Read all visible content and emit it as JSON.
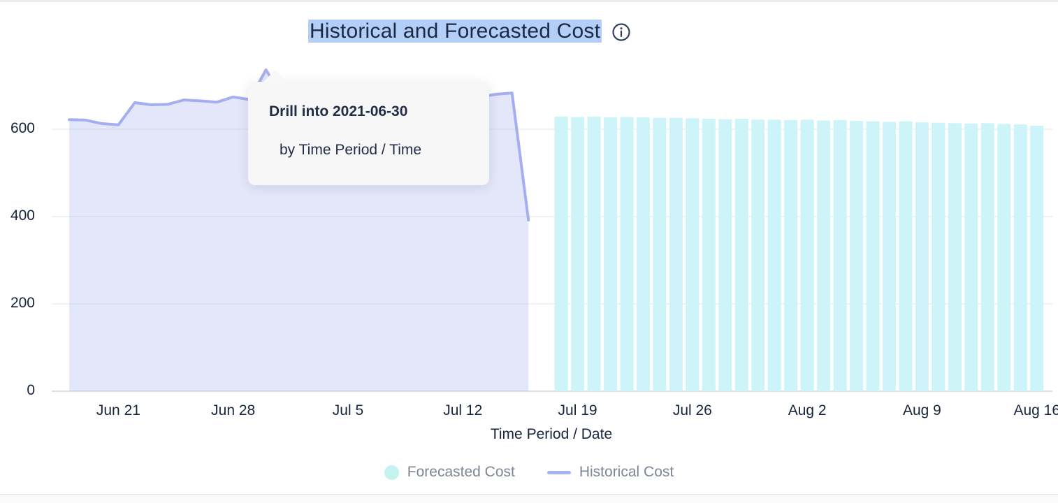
{
  "header": {
    "title": "Historical and Forecasted Cost",
    "selection_color": "#b4cff7"
  },
  "tooltip": {
    "title": "Drill into 2021-06-30",
    "subtitle": "by Time Period / Time"
  },
  "legend": {
    "items": [
      {
        "label": "Forecasted Cost",
        "swatch": "circle",
        "color": "#c3f2ef"
      },
      {
        "label": "Historical Cost",
        "swatch": "line",
        "color": "#a9b2f0"
      }
    ]
  },
  "chart_data": {
    "type": "mixed",
    "title": "Historical and Forecasted Cost",
    "xlabel": "Time Period / Date",
    "ylabel": "",
    "ylim": [
      0,
      760
    ],
    "grid": true,
    "legend_position": "bottom",
    "y_ticks": [
      0,
      200,
      400,
      600
    ],
    "x_ticks": [
      {
        "label": "Jun 21",
        "date": "2021-06-21"
      },
      {
        "label": "Jun 28",
        "date": "2021-06-28"
      },
      {
        "label": "Jul 5",
        "date": "2021-07-05"
      },
      {
        "label": "Jul 12",
        "date": "2021-07-12"
      },
      {
        "label": "Jul 19",
        "date": "2021-07-19"
      },
      {
        "label": "Jul 26",
        "date": "2021-07-26"
      },
      {
        "label": "Aug 2",
        "date": "2021-08-02"
      },
      {
        "label": "Aug 9",
        "date": "2021-08-09"
      },
      {
        "label": "Aug 16",
        "date": "2021-08-16"
      }
    ],
    "series": [
      {
        "name": "Historical Cost",
        "type": "line",
        "color": "#a5afef",
        "fill_opacity": 0.3,
        "x": [
          "2021-06-18",
          "2021-06-19",
          "2021-06-20",
          "2021-06-21",
          "2021-06-22",
          "2021-06-23",
          "2021-06-24",
          "2021-06-25",
          "2021-06-26",
          "2021-06-27",
          "2021-06-28",
          "2021-06-29",
          "2021-06-30",
          "2021-07-01",
          "2021-07-02",
          "2021-07-03",
          "2021-07-04",
          "2021-07-05",
          "2021-07-06",
          "2021-07-07",
          "2021-07-08",
          "2021-07-09",
          "2021-07-10",
          "2021-07-11",
          "2021-07-12",
          "2021-07-13",
          "2021-07-14",
          "2021-07-15",
          "2021-07-16"
        ],
        "values": [
          622,
          621,
          613,
          610,
          661,
          656,
          657,
          667,
          665,
          662,
          674,
          668,
          736,
          676,
          670,
          666,
          663,
          661,
          660,
          661,
          658,
          660,
          664,
          667,
          671,
          674,
          680,
          683,
          392
        ]
      },
      {
        "name": "Forecasted Cost",
        "type": "bar",
        "color": "#cdf4f8",
        "x": [
          "2021-07-18",
          "2021-07-19",
          "2021-07-20",
          "2021-07-21",
          "2021-07-22",
          "2021-07-23",
          "2021-07-24",
          "2021-07-25",
          "2021-07-26",
          "2021-07-27",
          "2021-07-28",
          "2021-07-29",
          "2021-07-30",
          "2021-07-31",
          "2021-08-01",
          "2021-08-02",
          "2021-08-03",
          "2021-08-04",
          "2021-08-05",
          "2021-08-06",
          "2021-08-07",
          "2021-08-08",
          "2021-08-09",
          "2021-08-10",
          "2021-08-11",
          "2021-08-12",
          "2021-08-13",
          "2021-08-14",
          "2021-08-15",
          "2021-08-16"
        ],
        "values": [
          629,
          628,
          629,
          627,
          628,
          627,
          626,
          626,
          625,
          624,
          623,
          624,
          622,
          622,
          621,
          622,
          620,
          621,
          619,
          618,
          617,
          618,
          616,
          615,
          614,
          613,
          614,
          612,
          611,
          608
        ]
      }
    ]
  }
}
